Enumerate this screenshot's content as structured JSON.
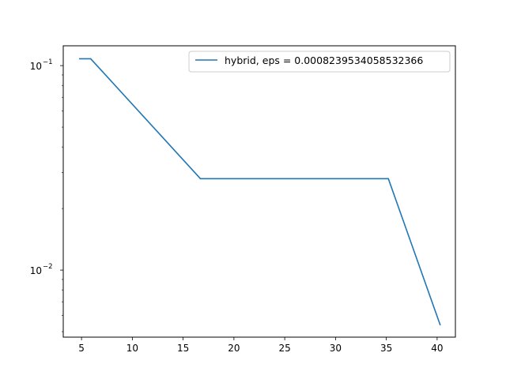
{
  "chart_data": {
    "type": "line",
    "title": "",
    "xlabel": "",
    "ylabel": "",
    "y_scale": "log",
    "xlim": [
      3.2,
      41.8
    ],
    "ylim": [
      0.0047,
      0.125
    ],
    "x_ticks": [
      5,
      10,
      15,
      20,
      25,
      30,
      35,
      40
    ],
    "x_tick_labels": [
      "5",
      "10",
      "15",
      "20",
      "25",
      "30",
      "35",
      "40"
    ],
    "y_ticks": [
      0.1,
      0.01
    ],
    "y_tick_labels": [
      {
        "base": "10",
        "exp": "−1"
      },
      {
        "base": "10",
        "exp": "−2"
      }
    ],
    "grid": false,
    "legend_position": "top-right",
    "series": [
      {
        "name": "hybrid, eps = 0.0008239534058532366",
        "color": "#1f77b4",
        "x": [
          4.8,
          5.9,
          16.7,
          35.2,
          40.3
        ],
        "y": [
          0.108,
          0.108,
          0.028,
          0.028,
          0.0054
        ]
      }
    ]
  }
}
